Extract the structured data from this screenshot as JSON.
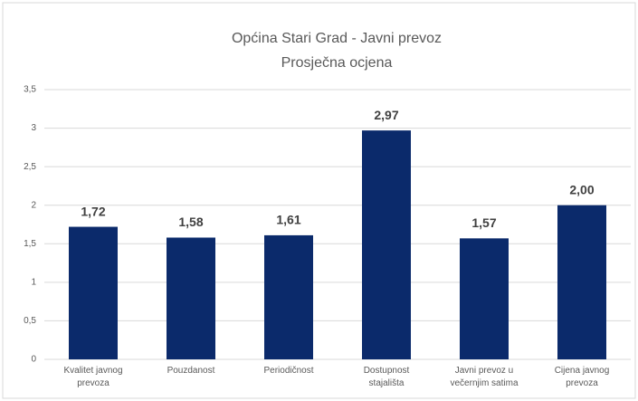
{
  "chart_data": {
    "type": "bar",
    "title": "Općina Stari Grad - Javni prevoz",
    "subtitle": "Prosječna ocjena",
    "categories": [
      "Kvalitet javnog prevoza",
      "Pouzdanost",
      "Periodičnost",
      "Dostupnost stajališta",
      "Javni prevoz u večernjim satima",
      "Cijena javnog prevoza"
    ],
    "values": [
      1.72,
      1.58,
      1.61,
      2.97,
      1.57,
      2.0
    ],
    "value_labels": [
      "1,72",
      "1,58",
      "1,61",
      "2,97",
      "1,57",
      "2,00"
    ],
    "color": "#0b2a6b",
    "ylim": [
      0,
      3.5
    ],
    "yticks": [
      0,
      {
        "value": 0.5,
        "label": "0,5"
      },
      1,
      {
        "value": 1.5,
        "label": "1,5"
      },
      2,
      {
        "value": 2.5,
        "label": "2,5"
      },
      3,
      {
        "value": 3.5,
        "label": "3,5"
      }
    ],
    "grid": true
  }
}
